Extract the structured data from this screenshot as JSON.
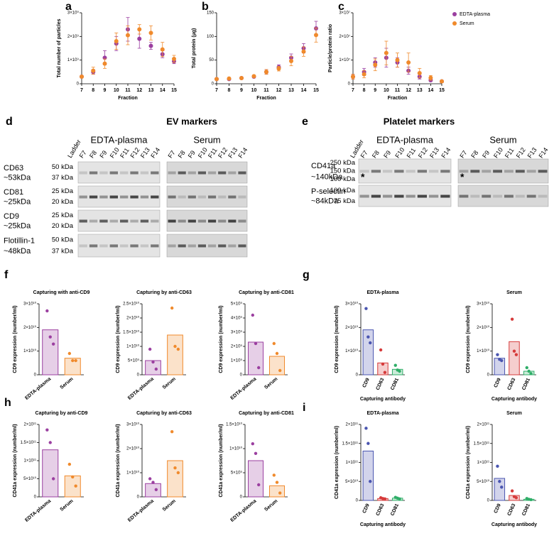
{
  "chart_data": [
    {
      "type": "scatter",
      "panel": "a",
      "ylabel": "Total number of particles",
      "xlabel": "Fraction",
      "x": [
        7,
        8,
        9,
        10,
        11,
        12,
        13,
        14,
        15
      ],
      "xlim": [
        7,
        15
      ],
      "xticks": [
        7,
        8,
        9,
        10,
        11,
        12,
        13,
        14,
        15
      ],
      "ylim": [
        0,
        3000000000.0
      ],
      "yticks": [
        0,
        {
          "value": 1000000000.0,
          "label": "1×10⁹"
        },
        {
          "value": 2000000000.0,
          "label": "2×10⁹"
        },
        {
          "value": 3000000000.0,
          "label": "3×10⁹"
        }
      ],
      "series": [
        {
          "name": "EDTA-plasma",
          "color": "#9b3fa0",
          "values": [
            300000000.0,
            500000000.0,
            1100000000.0,
            1700000000.0,
            2300000000.0,
            1900000000.0,
            1600000000.0,
            1250000000.0,
            950000000.0
          ],
          "errors": [
            50000000.0,
            100000000.0,
            300000000.0,
            300000000.0,
            500000000.0,
            400000000.0,
            150000000.0,
            150000000.0,
            100000000.0
          ]
        },
        {
          "name": "Serum",
          "color": "#f08a2c",
          "values": [
            300000000.0,
            550000000.0,
            850000000.0,
            1800000000.0,
            2050000000.0,
            2300000000.0,
            2150000000.0,
            1450000000.0,
            1050000000.0
          ],
          "errors": [
            50000000.0,
            150000000.0,
            200000000.0,
            350000000.0,
            400000000.0,
            200000000.0,
            300000000.0,
            300000000.0,
            150000000.0
          ]
        }
      ]
    },
    {
      "type": "scatter",
      "panel": "b",
      "ylabel": "Total protein (µg)",
      "xlabel": "Fraction",
      "x": [
        7,
        8,
        9,
        10,
        11,
        12,
        13,
        14,
        15
      ],
      "xlim": [
        7,
        15
      ],
      "xticks": [
        7,
        8,
        9,
        10,
        11,
        12,
        13,
        14,
        15
      ],
      "ylim": [
        0,
        150
      ],
      "yticks": [
        0,
        50,
        100,
        150
      ],
      "series": [
        {
          "name": "EDTA-plasma",
          "color": "#9b3fa0",
          "values": [
            10,
            10,
            12,
            15,
            25,
            35,
            55,
            75,
            117
          ],
          "errors": [
            1,
            1,
            1,
            2,
            5,
            5,
            8,
            10,
            15
          ]
        },
        {
          "name": "Serum",
          "color": "#f08a2c",
          "values": [
            10,
            11,
            12,
            16,
            25,
            32,
            48,
            68,
            103
          ],
          "errors": [
            1,
            1,
            1,
            2,
            5,
            5,
            10,
            10,
            15
          ]
        }
      ]
    },
    {
      "type": "scatter",
      "panel": "c",
      "ylabel": "Particle/protein ratio",
      "xlabel": "Fraction",
      "legend": "right",
      "x": [
        7,
        8,
        9,
        10,
        11,
        12,
        13,
        14,
        15
      ],
      "xlim": [
        7,
        15
      ],
      "xticks": [
        7,
        8,
        9,
        10,
        11,
        12,
        13,
        14,
        15
      ],
      "ylim": [
        0,
        30000000.0
      ],
      "yticks": [
        0,
        {
          "value": 10000000.0,
          "label": "1×10⁷"
        },
        {
          "value": 20000000.0,
          "label": "2×10⁷"
        },
        {
          "value": 30000000.0,
          "label": "3×10⁷"
        }
      ],
      "series": [
        {
          "name": "EDTA-plasma",
          "color": "#9b3fa0",
          "values": [
            3000000.0,
            5000000.0,
            9000000.0,
            11000000.0,
            9000000.0,
            5500000.0,
            3000000.0,
            1500000.0,
            1000000.0
          ],
          "errors": [
            1000000.0,
            1500000.0,
            2000000.0,
            4000000.0,
            2000000.0,
            1500000.0,
            1000000.0,
            500000.0,
            500000.0
          ]
        },
        {
          "name": "Serum",
          "color": "#f08a2c",
          "values": [
            3000000.0,
            4000000.0,
            8000000.0,
            13000000.0,
            10000000.0,
            9000000.0,
            4500000.0,
            2500000.0,
            1000000.0
          ],
          "errors": [
            1000000.0,
            1500000.0,
            2500000.0,
            5000000.0,
            3000000.0,
            4000000.0,
            2000000.0,
            1000000.0,
            500000.0
          ]
        }
      ]
    },
    {
      "type": "bar",
      "panel": "f",
      "title": "Capturing with anti-CD9",
      "ylabel": "CD9 expression (number/ml)",
      "categories": [
        "EDTA-plasma",
        "Serum"
      ],
      "colors": [
        "#9b3fa0",
        "#f08a2c"
      ],
      "values": [
        19000000000.0,
        7000000000.0
      ],
      "points": [
        [
          27000000000.0,
          16000000000.0,
          13000000000.0
        ],
        [
          9000000000.0,
          6000000000.0,
          6000000000.0
        ]
      ],
      "ylim": [
        0,
        30000000000.0
      ],
      "yticks": [
        0,
        {
          "value": 10000000000.0,
          "label": "1×10¹⁰"
        },
        {
          "value": 20000000000.0,
          "label": "2×10¹⁰"
        },
        {
          "value": 30000000000.0,
          "label": "3×10¹⁰"
        }
      ]
    },
    {
      "type": "bar",
      "title": "Capturing by anti-CD63",
      "ylabel": "CD9 expression (number/ml)",
      "categories": [
        "EDTA-plasma",
        "Serum"
      ],
      "colors": [
        "#9b3fa0",
        "#f08a2c"
      ],
      "values": [
        5000000000.0,
        14000000000.0
      ],
      "points": [
        [
          9000000000.0,
          4500000000.0,
          2000000000.0
        ],
        [
          23500000000.0,
          10000000000.0,
          9000000000.0
        ]
      ],
      "ylim": [
        0,
        25000000000.0
      ],
      "yticks": [
        0,
        {
          "value": 5000000000.0,
          "label": "5×10⁹"
        },
        {
          "value": 10000000000.0,
          "label": "1×10¹⁰"
        },
        {
          "value": 15000000000.0,
          "label": "1.5×10¹⁰"
        },
        {
          "value": 20000000000.0,
          "label": "2×10¹⁰"
        },
        {
          "value": 25000000000.0,
          "label": "2.5×10¹⁰"
        }
      ]
    },
    {
      "type": "bar",
      "title": "Capturing by anti-CD81",
      "ylabel": "CD9 expression (number/ml)",
      "categories": [
        "EDTA-plasma",
        "Serum"
      ],
      "colors": [
        "#9b3fa0",
        "#f08a2c"
      ],
      "values": [
        2300000000.0,
        1300000000.0
      ],
      "points": [
        [
          4200000000.0,
          2200000000.0,
          500000000.0
        ],
        [
          2200000000.0,
          1500000000.0,
          300000000.0
        ]
      ],
      "ylim": [
        0,
        5000000000.0
      ],
      "yticks": [
        0,
        {
          "value": 1000000000.0,
          "label": "1×10⁹"
        },
        {
          "value": 2000000000.0,
          "label": "2×10⁹"
        },
        {
          "value": 3000000000.0,
          "label": "3×10⁹"
        },
        {
          "value": 4000000000.0,
          "label": "4×10⁹"
        },
        {
          "value": 5000000000.0,
          "label": "5×10⁹"
        }
      ]
    },
    {
      "type": "bar",
      "panel": "g",
      "title": "EDTA-plasma",
      "ylabel": "CD9 expression (number/ml)",
      "xlabel": "Capturing antibody",
      "categories": [
        "CD9",
        "CD63",
        "CD81"
      ],
      "colors": [
        "#4a55b0",
        "#d63a3a",
        "#2fae68"
      ],
      "values": [
        19000000000.0,
        5000000000.0,
        2300000000.0
      ],
      "points": [
        [
          28000000000.0,
          16000000000.0,
          13500000000.0
        ],
        [
          10500000000.0,
          4500000000.0,
          1000000000.0
        ],
        [
          4000000000.0,
          2000000000.0,
          1500000000.0
        ]
      ],
      "ylim": [
        0,
        30000000000.0
      ],
      "yticks": [
        0,
        {
          "value": 10000000000.0,
          "label": "1×10¹⁰"
        },
        {
          "value": 20000000000.0,
          "label": "2×10¹⁰"
        },
        {
          "value": 30000000000.0,
          "label": "3×10¹⁰"
        }
      ]
    },
    {
      "type": "bar",
      "title": "Serum",
      "ylabel": "CD9 expression (number/ml)",
      "xlabel": "Capturing antibody",
      "categories": [
        "CD9",
        "CD63",
        "CD81"
      ],
      "colors": [
        "#4a55b0",
        "#d63a3a",
        "#2fae68"
      ],
      "values": [
        7000000000.0,
        14000000000.0,
        1500000000.0
      ],
      "points": [
        [
          8500000000.0,
          6500000000.0,
          6000000000.0
        ],
        [
          23500000000.0,
          10000000000.0,
          8500000000.0
        ],
        [
          3000000000.0,
          1500000000.0,
          500000000.0
        ]
      ],
      "ylim": [
        0,
        30000000000.0
      ],
      "yticks": [
        0,
        {
          "value": 10000000000.0,
          "label": "1×10¹⁰"
        },
        {
          "value": 20000000000.0,
          "label": "2×10¹⁰"
        },
        {
          "value": 30000000000.0,
          "label": "3×10¹⁰"
        }
      ]
    },
    {
      "type": "bar",
      "panel": "h",
      "title": "Capturing by anti-CD9",
      "ylabel": "CD41a expression (number/ml)",
      "categories": [
        "EDTA-plasma",
        "Serum"
      ],
      "colors": [
        "#9b3fa0",
        "#f08a2c"
      ],
      "values": [
        130000000000.0,
        58000000000.0
      ],
      "points": [
        [
          185000000000.0,
          150000000000.0,
          50000000000.0
        ],
        [
          90000000000.0,
          55000000000.0,
          30000000000.0
        ]
      ],
      "ylim": [
        0,
        200000000000.0
      ],
      "yticks": [
        0,
        {
          "value": 50000000000.0,
          "label": "5×10¹⁰"
        },
        {
          "value": 100000000000.0,
          "label": "1×10¹¹"
        },
        {
          "value": 150000000000.0,
          "label": "1.5×10¹¹"
        },
        {
          "value": 200000000000.0,
          "label": "2×10¹¹"
        }
      ]
    },
    {
      "type": "bar",
      "title": "Capturing by anti-CD63",
      "ylabel": "CD41a expression (number/ml)",
      "categories": [
        "EDTA-plasma",
        "Serum"
      ],
      "colors": [
        "#9b3fa0",
        "#f08a2c"
      ],
      "values": [
        5500000000.0,
        15000000000.0
      ],
      "points": [
        [
          7500000000.0,
          6000000000.0,
          3000000000.0
        ],
        [
          27000000000.0,
          12000000000.0,
          10000000000.0
        ]
      ],
      "ylim": [
        0,
        30000000000.0
      ],
      "yticks": [
        0,
        {
          "value": 10000000000.0,
          "label": "1×10¹⁰"
        },
        {
          "value": 20000000000.0,
          "label": "2×10¹⁰"
        },
        {
          "value": 30000000000.0,
          "label": "3×10¹⁰"
        }
      ]
    },
    {
      "type": "bar",
      "title": "Capturing by anti-CD81",
      "ylabel": "CD41a expression (number/ml)",
      "categories": [
        "EDTA-plasma",
        "Serum"
      ],
      "colors": [
        "#9b3fa0",
        "#f08a2c"
      ],
      "values": [
        7500000000.0,
        2300000000.0
      ],
      "points": [
        [
          11000000000.0,
          9000000000.0,
          2500000000.0
        ],
        [
          4500000000.0,
          3000000000.0,
          800000000.0
        ]
      ],
      "ylim": [
        0,
        15000000000.0
      ],
      "yticks": [
        0,
        {
          "value": 5000000000.0,
          "label": "5×10⁹"
        },
        {
          "value": 10000000000.0,
          "label": "1×10¹⁰"
        },
        {
          "value": 15000000000.0,
          "label": "1.5×10¹⁰"
        }
      ]
    },
    {
      "type": "bar",
      "panel": "i",
      "title": "EDTA-plasma",
      "ylabel": "CD41a expression (number/ml)",
      "xlabel": "Capturing antibody",
      "categories": [
        "CD9",
        "CD63",
        "CD81"
      ],
      "colors": [
        "#4a55b0",
        "#d63a3a",
        "#2fae68"
      ],
      "values": [
        130000000000.0,
        5000000000.0,
        6000000000.0
      ],
      "points": [
        [
          190000000000.0,
          150000000000.0,
          50000000000.0
        ],
        [
          7000000000.0,
          5000000000.0,
          4000000000.0
        ],
        [
          8000000000.0,
          6000000000.0,
          4000000000.0
        ]
      ],
      "ylim": [
        0,
        200000000000.0
      ],
      "yticks": [
        0,
        {
          "value": 50000000000.0,
          "label": "5×10¹⁰"
        },
        {
          "value": 100000000000.0,
          "label": "1×10¹¹"
        },
        {
          "value": 150000000000.0,
          "label": "1.5×10¹¹"
        },
        {
          "value": 200000000000.0,
          "label": "2×10¹¹"
        }
      ]
    },
    {
      "type": "bar",
      "title": "Serum",
      "ylabel": "CD41a expression (number/ml)",
      "xlabel": "Capturing antibody",
      "categories": [
        "CD9",
        "CD63",
        "CD81"
      ],
      "colors": [
        "#4a55b0",
        "#d63a3a",
        "#2fae68"
      ],
      "values": [
        58000000000.0,
        13000000000.0,
        3000000000.0
      ],
      "points": [
        [
          90000000000.0,
          50000000000.0,
          35000000000.0
        ],
        [
          25000000000.0,
          10000000000.0,
          7000000000.0
        ],
        [
          5000000000.0,
          3000000000.0,
          2000000000.0
        ]
      ],
      "ylim": [
        0,
        200000000000.0
      ],
      "yticks": [
        0,
        {
          "value": 50000000000.0,
          "label": "5×10¹⁰"
        },
        {
          "value": 100000000000.0,
          "label": "1×10¹¹"
        },
        {
          "value": 150000000000.0,
          "label": "1.5×10¹¹"
        },
        {
          "value": 200000000000.0,
          "label": "2×10¹¹"
        }
      ]
    }
  ],
  "blots": [
    {
      "panel": "d",
      "title": "EV markers",
      "ladder": "Ladder",
      "groups": [
        {
          "name": "EDTA-plasma",
          "lanes": [
            "F7",
            "F8",
            "F9",
            "F10",
            "F11",
            "F12",
            "F13",
            "F14"
          ]
        },
        {
          "name": "Serum",
          "lanes": [
            "F7",
            "F8",
            "F9",
            "F10",
            "F11",
            "F12",
            "F13",
            "F14"
          ]
        }
      ],
      "rows": [
        {
          "protein": "CD63",
          "size": "~53kDa",
          "markers": [
            "50 kDa",
            "37 kDa"
          ]
        },
        {
          "protein": "CD81",
          "size": "~25kDa",
          "markers": [
            "25 kDa",
            "20 kDa"
          ]
        },
        {
          "protein": "CD9",
          "size": "~25kDa",
          "markers": [
            "25 kDa",
            "20 kDa"
          ]
        },
        {
          "protein": "Flotillin-1",
          "size": "~48kDa",
          "markers": [
            "50 kDa",
            "37 kDa"
          ]
        }
      ]
    },
    {
      "panel": "e",
      "title": "Platelet markers",
      "ladder": "Ladder",
      "groups": [
        {
          "name": "EDTA-plasma",
          "lanes": [
            "F7",
            "F8",
            "F9",
            "F10",
            "F11",
            "F12",
            "F13",
            "F14"
          ]
        },
        {
          "name": "Serum",
          "lanes": [
            "F7",
            "F8",
            "F9",
            "F10",
            "F11",
            "F12",
            "F13",
            "F14"
          ]
        }
      ],
      "rows": [
        {
          "protein": "CD41a",
          "size": "~140kDa",
          "markers": [
            "250 kDa",
            "150 kDa",
            "100 kDa"
          ],
          "asterisk": "*"
        },
        {
          "protein": "P-selectin",
          "size": "~84kDa",
          "markers": [
            "100 kDa",
            "75 kDa"
          ]
        }
      ]
    }
  ]
}
